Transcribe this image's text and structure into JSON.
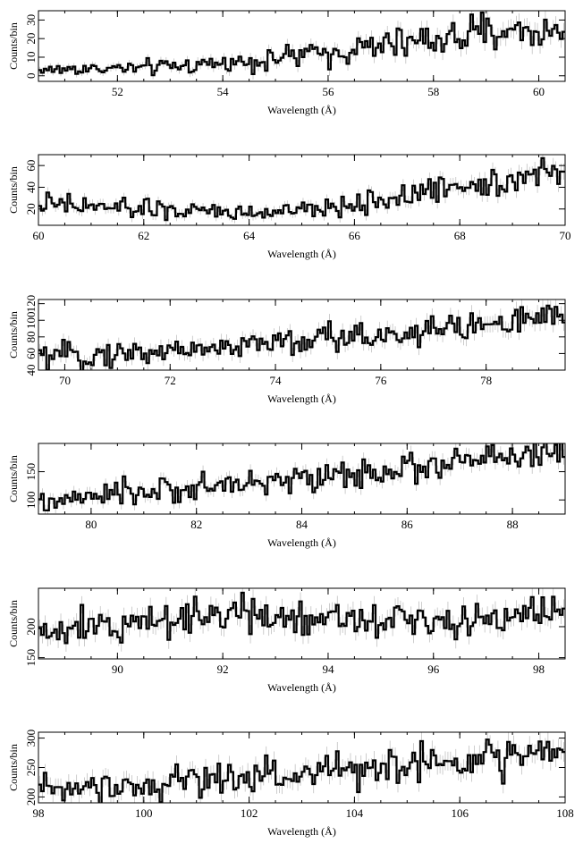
{
  "chart_data": [
    {
      "type": "line",
      "style": "step-histogram-with-error-bars",
      "xlabel": "Wavelength (Å)",
      "ylabel": "Counts/bin",
      "xlim": [
        50.5,
        60.5
      ],
      "ylim": [
        -3,
        35
      ],
      "xticks": [
        52,
        54,
        56,
        58,
        60
      ],
      "yticks": [
        0,
        10,
        20,
        30
      ],
      "x": [
        50.5,
        51.5,
        52.5,
        53.5,
        54.5,
        55.5,
        56.5,
        57.5,
        58.5,
        59.5,
        60.5
      ],
      "values": [
        3,
        4,
        4,
        6,
        8,
        11,
        14,
        18,
        21,
        25,
        22
      ]
    },
    {
      "type": "line",
      "style": "step-histogram-with-error-bars",
      "xlabel": "Wavelength (Å)",
      "ylabel": "Counts/bin",
      "xlim": [
        60,
        70
      ],
      "ylim": [
        5,
        70
      ],
      "xticks": [
        60,
        62,
        64,
        66,
        68,
        70
      ],
      "yticks": [
        20,
        40,
        60
      ],
      "x": [
        60,
        61,
        62,
        63,
        64,
        65,
        66,
        67,
        68,
        69,
        70
      ],
      "values": [
        24,
        22,
        20,
        18,
        16,
        18,
        24,
        32,
        42,
        48,
        55
      ]
    },
    {
      "type": "line",
      "style": "step-histogram-with-error-bars",
      "xlabel": "Wavelength (Å)",
      "ylabel": "Counts/bin",
      "xlim": [
        69.5,
        79.5
      ],
      "ylim": [
        40,
        125
      ],
      "xticks": [
        70,
        72,
        74,
        76,
        78
      ],
      "yticks": [
        40,
        60,
        80,
        100,
        120
      ],
      "x": [
        69.5,
        70.5,
        71.5,
        72.5,
        73.5,
        74.5,
        75.5,
        76.5,
        77.5,
        78.5,
        79.5
      ],
      "values": [
        55,
        58,
        62,
        66,
        70,
        75,
        80,
        86,
        92,
        98,
        102
      ]
    },
    {
      "type": "line",
      "style": "step-histogram-with-error-bars",
      "xlabel": "Wavelength (Å)",
      "ylabel": "Counts/bin",
      "xlim": [
        79,
        89
      ],
      "ylim": [
        75,
        200
      ],
      "xticks": [
        80,
        82,
        84,
        86,
        88
      ],
      "yticks": [
        100,
        150
      ],
      "x": [
        79,
        80,
        81,
        82,
        83,
        84,
        85,
        86,
        87,
        88,
        89
      ],
      "values": [
        92,
        104,
        114,
        122,
        130,
        138,
        146,
        156,
        166,
        176,
        188
      ]
    },
    {
      "type": "line",
      "style": "step-histogram-with-error-bars",
      "xlabel": "Wavelength (Å)",
      "ylabel": "Counts/bin",
      "xlim": [
        88.5,
        98.5
      ],
      "ylim": [
        148,
        262
      ],
      "xticks": [
        90,
        92,
        94,
        96,
        98
      ],
      "yticks": [
        150,
        200
      ],
      "x": [
        88.5,
        89.5,
        90.5,
        91.5,
        92.5,
        93.5,
        94.5,
        95.5,
        96.5,
        97.5,
        98.5
      ],
      "values": [
        188,
        196,
        210,
        220,
        222,
        218,
        215,
        213,
        214,
        218,
        222
      ]
    },
    {
      "type": "line",
      "style": "step-histogram-with-error-bars",
      "xlabel": "Wavelength (Å)",
      "ylabel": "Counts/bin",
      "xlim": [
        98,
        108
      ],
      "ylim": [
        190,
        310
      ],
      "xticks": [
        98,
        100,
        102,
        104,
        106,
        108
      ],
      "yticks": [
        200,
        250,
        300
      ],
      "x": [
        98,
        99,
        100,
        101,
        102,
        103,
        104,
        105,
        106,
        107,
        108
      ],
      "values": [
        215,
        220,
        225,
        230,
        236,
        242,
        248,
        254,
        262,
        270,
        275
      ]
    }
  ],
  "colors": {
    "histogram": "#000000",
    "error_bars": "#b8b8b8",
    "background": "#ffffff"
  }
}
